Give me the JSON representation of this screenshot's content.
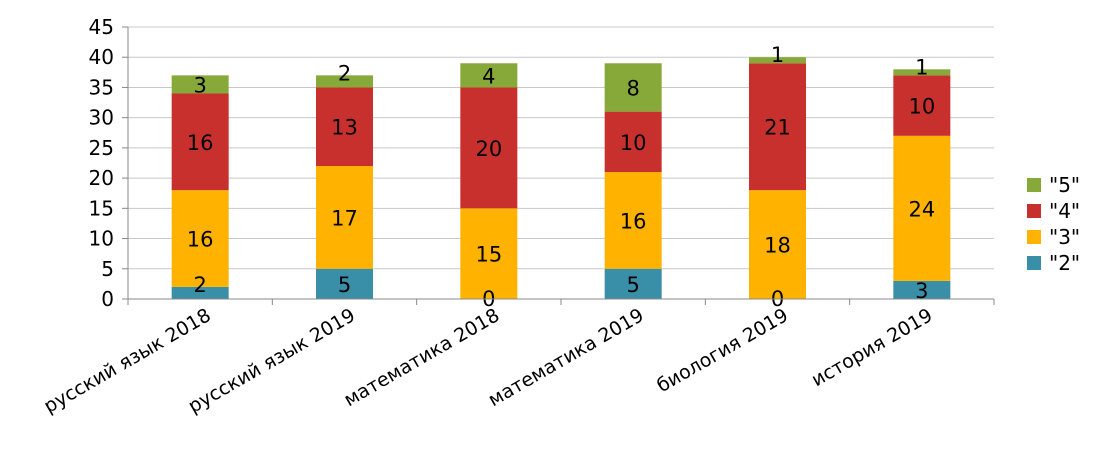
{
  "chart_data": {
    "type": "bar",
    "stacked": true,
    "categories": [
      "русский язык 2018",
      "русский язык 2019",
      "математика  2018",
      "математика 2019",
      "биология 2019",
      "история 2019"
    ],
    "series": [
      {
        "name": "\"2\"",
        "color": "#3a8fa8",
        "values": [
          2,
          5,
          0,
          5,
          0,
          3
        ]
      },
      {
        "name": "\"3\"",
        "color": "#ffb300",
        "values": [
          16,
          17,
          15,
          16,
          18,
          24
        ]
      },
      {
        "name": "\"4\"",
        "color": "#c8302e",
        "values": [
          16,
          13,
          20,
          10,
          21,
          10
        ]
      },
      {
        "name": "\"5\"",
        "color": "#87a93a",
        "values": [
          3,
          2,
          4,
          8,
          1,
          1
        ]
      }
    ],
    "ylim": [
      0,
      45
    ],
    "ytick_step": 5,
    "grid": true,
    "legend": "right"
  }
}
